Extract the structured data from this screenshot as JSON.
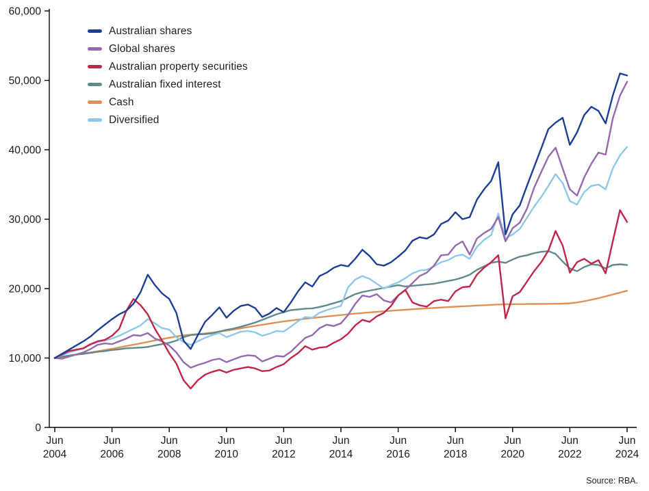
{
  "source_note": "Source: RBA.",
  "chart_data": {
    "type": "line",
    "title": "",
    "grid": false,
    "legend_position": "top-left",
    "axis_color": "#1a1a1a",
    "text_color": "#1a1a1a",
    "y_axis": {
      "range": [
        0,
        60000
      ],
      "ticks": [
        0,
        10000,
        20000,
        30000,
        40000,
        50000,
        60000
      ],
      "tick_labels": [
        "0",
        "10,000",
        "20,000",
        "30,000",
        "40,000",
        "50,000",
        "60,000"
      ]
    },
    "x_axis": {
      "range_years": [
        2004.5,
        2024.5
      ],
      "tick_step_years": 2,
      "tick_label_top": "Jun",
      "tick_years": [
        "2004",
        "2006",
        "2008",
        "2010",
        "2012",
        "2014",
        "2016",
        "2018",
        "2020",
        "2022",
        "2024"
      ]
    },
    "x_start_year": 2004.5,
    "x_step_years": 0.25,
    "series": [
      {
        "name": "Australian shares",
        "color": "#1c3e94",
        "values": [
          10000,
          10600,
          11200,
          11800,
          12400,
          13100,
          14000,
          14800,
          15600,
          16300,
          16800,
          17800,
          19500,
          22000,
          20500,
          19300,
          18500,
          16500,
          12500,
          11300,
          13300,
          15200,
          16200,
          17300,
          15800,
          16800,
          17500,
          17700,
          17200,
          15900,
          16400,
          17200,
          16600,
          18000,
          19600,
          20900,
          20300,
          21800,
          22300,
          23000,
          23400,
          23200,
          24300,
          25600,
          24700,
          23500,
          23300,
          23800,
          24600,
          25500,
          26900,
          27400,
          27200,
          27800,
          29300,
          29800,
          31000,
          30000,
          30300,
          32800,
          34300,
          35500,
          38200,
          27800,
          30700,
          32000,
          34800,
          37500,
          40200,
          43000,
          43900,
          44600,
          40700,
          42500,
          45000,
          46200,
          45600,
          43800,
          47800,
          51000,
          50700
        ]
      },
      {
        "name": "Global shares",
        "color": "#9668ae",
        "values": [
          10000,
          9900,
          10200,
          10500,
          10800,
          11300,
          11900,
          12100,
          12000,
          12400,
          12800,
          13300,
          13200,
          13600,
          12800,
          12400,
          11800,
          10800,
          9400,
          8600,
          9000,
          9300,
          9700,
          9900,
          9400,
          9800,
          10200,
          10400,
          10300,
          9500,
          9900,
          10300,
          10200,
          10900,
          11900,
          12900,
          13300,
          14300,
          14800,
          14600,
          15000,
          16200,
          17800,
          19000,
          18800,
          19200,
          18300,
          18000,
          19000,
          19800,
          20800,
          21800,
          22300,
          23300,
          24800,
          24900,
          26200,
          26800,
          24900,
          27200,
          28000,
          28600,
          30300,
          26800,
          28700,
          29500,
          31500,
          34500,
          36800,
          39000,
          40300,
          37300,
          34300,
          33400,
          36000,
          38000,
          39600,
          39300,
          44500,
          47800,
          49800
        ]
      },
      {
        "name": "Australian property securities",
        "color": "#c02648",
        "values": [
          10000,
          10500,
          11000,
          11200,
          11400,
          12000,
          12400,
          12600,
          13200,
          14200,
          16800,
          18500,
          17600,
          16300,
          14200,
          12500,
          10700,
          9200,
          6800,
          5600,
          6800,
          7600,
          8000,
          8300,
          7900,
          8300,
          8500,
          8700,
          8500,
          8100,
          8200,
          8700,
          9100,
          10000,
          10700,
          11700,
          11200,
          11500,
          11600,
          12200,
          12700,
          13500,
          14700,
          15500,
          15200,
          16000,
          16500,
          17500,
          19000,
          19800,
          18000,
          17600,
          17400,
          18200,
          18400,
          18200,
          19600,
          20200,
          20300,
          22000,
          23000,
          23800,
          24800,
          15700,
          18900,
          19500,
          21000,
          22500,
          23800,
          25500,
          28300,
          26200,
          22300,
          23800,
          24300,
          23600,
          24100,
          22200,
          26800,
          31300,
          29600
        ]
      },
      {
        "name": "Australian fixed interest",
        "color": "#61898c",
        "values": [
          10000,
          10200,
          10350,
          10500,
          10600,
          10750,
          10900,
          11000,
          11150,
          11250,
          11400,
          11450,
          11500,
          11600,
          11800,
          12000,
          12200,
          12500,
          13000,
          13300,
          13400,
          13450,
          13550,
          13800,
          14050,
          14250,
          14500,
          14800,
          15100,
          15500,
          15900,
          16300,
          16600,
          16900,
          17000,
          17100,
          17150,
          17350,
          17600,
          17900,
          18200,
          18700,
          19200,
          19500,
          19700,
          19900,
          20100,
          20300,
          20500,
          20300,
          20400,
          20500,
          20600,
          20700,
          20900,
          21100,
          21300,
          21600,
          22000,
          22700,
          23200,
          23700,
          23900,
          23700,
          24200,
          24600,
          24800,
          25100,
          25300,
          25400,
          25000,
          23900,
          22900,
          22500,
          23100,
          23500,
          23400,
          22900,
          23400,
          23500,
          23400
        ]
      },
      {
        "name": "Cash",
        "color": "#dd9157",
        "values": [
          10000,
          10150,
          10310,
          10470,
          10630,
          10800,
          10970,
          11150,
          11330,
          11520,
          11710,
          11910,
          12110,
          12320,
          12530,
          12730,
          12920,
          13100,
          13250,
          13350,
          13440,
          13540,
          13660,
          13800,
          13950,
          14110,
          14280,
          14450,
          14620,
          14790,
          14950,
          15110,
          15260,
          15400,
          15530,
          15650,
          15760,
          15870,
          15980,
          16090,
          16190,
          16290,
          16390,
          16480,
          16570,
          16650,
          16730,
          16810,
          16880,
          16950,
          17020,
          17090,
          17150,
          17210,
          17270,
          17330,
          17390,
          17450,
          17500,
          17560,
          17610,
          17660,
          17700,
          17730,
          17750,
          17760,
          17770,
          17780,
          17790,
          17800,
          17810,
          17830,
          17880,
          18000,
          18180,
          18390,
          18610,
          18880,
          19150,
          19420,
          19680
        ]
      },
      {
        "name": "Diversified",
        "color": "#8fc7ea",
        "values": [
          10000,
          10400,
          10800,
          11100,
          11400,
          11900,
          12300,
          12500,
          12800,
          13200,
          13700,
          14200,
          14700,
          15600,
          15000,
          14300,
          14100,
          13000,
          12300,
          11900,
          12400,
          12900,
          13300,
          13600,
          13000,
          13400,
          13800,
          13900,
          13700,
          13200,
          13500,
          13900,
          13800,
          14500,
          15300,
          15900,
          15800,
          16500,
          16900,
          17200,
          17500,
          20200,
          21300,
          21800,
          21400,
          20700,
          20000,
          20500,
          20900,
          21500,
          22200,
          22600,
          22700,
          23200,
          23800,
          24100,
          24700,
          24900,
          24300,
          26000,
          27000,
          27700,
          30800,
          27200,
          27800,
          28600,
          30200,
          31800,
          33200,
          34800,
          36500,
          35200,
          32600,
          32100,
          33900,
          34800,
          35000,
          34300,
          37300,
          39200,
          40400
        ]
      }
    ]
  }
}
